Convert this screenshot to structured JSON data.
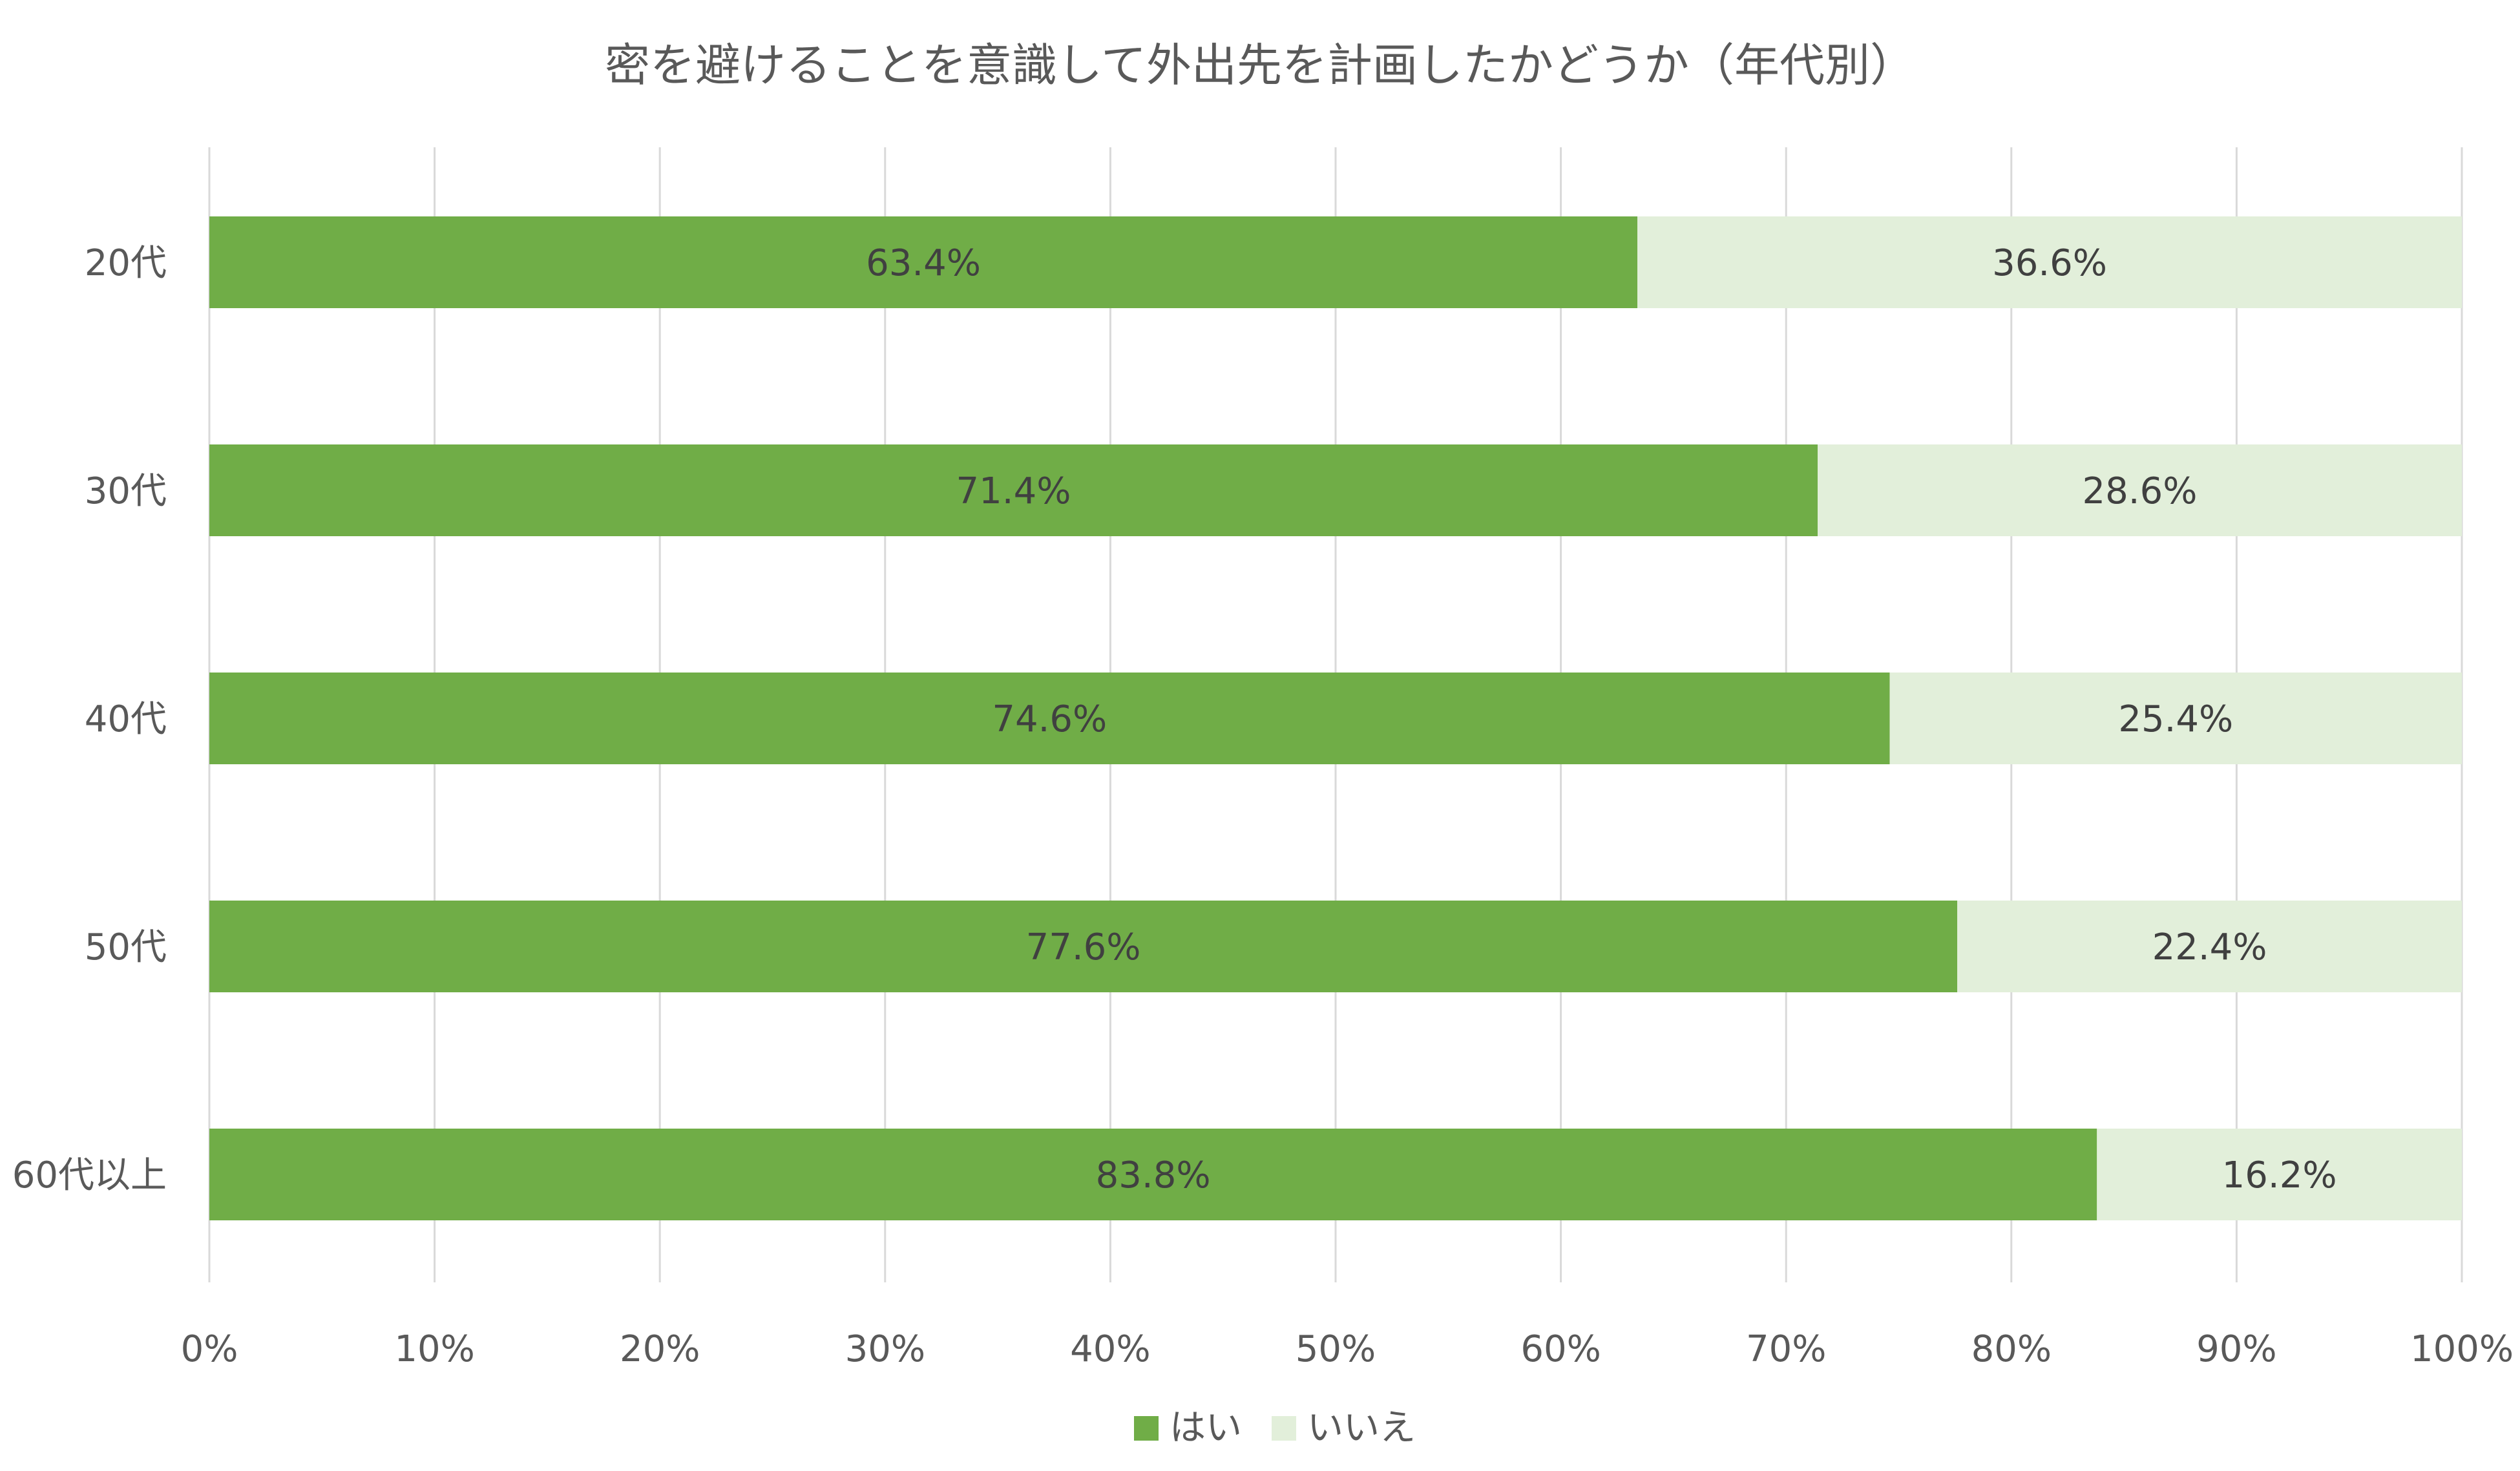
{
  "chart_data": {
    "type": "bar",
    "orientation": "horizontal",
    "stacked": "percent",
    "title": "密を避けることを意識して外出先を計画したかどうか（年代別）",
    "categories": [
      "20代",
      "30代",
      "40代",
      "50代",
      "60代以上"
    ],
    "series": [
      {
        "name": "はい",
        "values": [
          63.4,
          71.4,
          74.6,
          77.6,
          83.8
        ],
        "color": "#70AD47"
      },
      {
        "name": "いいえ",
        "values": [
          36.6,
          28.6,
          25.4,
          22.4,
          16.2
        ],
        "color": "#E2EFDA"
      }
    ],
    "data_labels": [
      [
        "63.4%",
        "71.4%",
        "74.6%",
        "77.6%",
        "83.8%"
      ],
      [
        "36.6%",
        "28.6%",
        "25.4%",
        "22.4%",
        "16.2%"
      ]
    ],
    "xlim": [
      0,
      100
    ],
    "x_ticks": [
      "0%",
      "10%",
      "20%",
      "30%",
      "40%",
      "50%",
      "60%",
      "70%",
      "80%",
      "90%",
      "100%"
    ],
    "grid": "vertical",
    "grid_color": "#D9D9D9",
    "legend_position": "bottom"
  }
}
